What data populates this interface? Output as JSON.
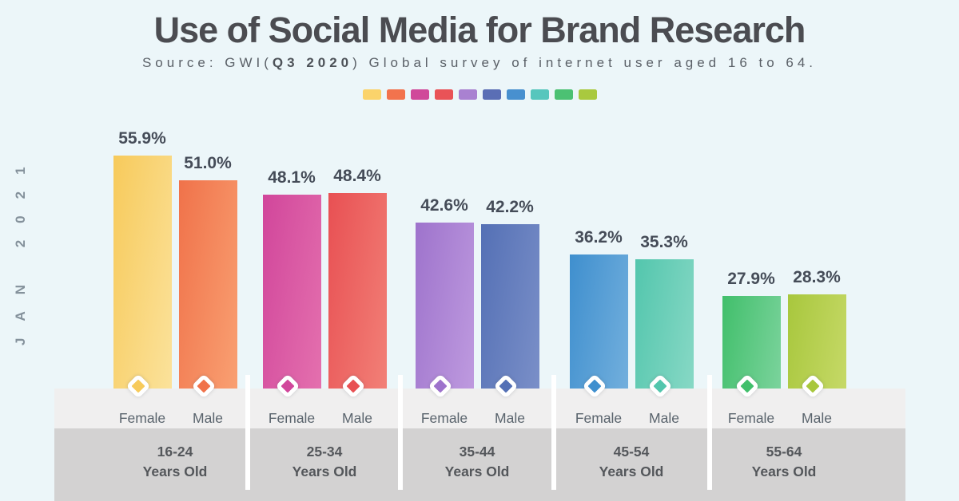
{
  "header": {
    "title": "Use of Social Media for Brand Research",
    "subtitle_prefix": "Source: GWI(",
    "subtitle_bold": "Q3 2020",
    "subtitle_suffix": ") Global survey of internet user aged 16 to 64."
  },
  "side_label": "JAN 2021",
  "legend_colors": [
    "#FBD36B",
    "#F2734D",
    "#D0499A",
    "#E95357",
    "#A981D1",
    "#5A6EB5",
    "#4890CF",
    "#57C6BD",
    "#4CC173",
    "#A9C93F"
  ],
  "colors": {
    "background": "#ECF6F9",
    "band_light": "#F0EFEF",
    "band_dark": "#D3D2D2",
    "divider": "#FFFFFF",
    "title_text": "#4B4C51",
    "subtitle_text": "#5A6067",
    "value_text": "#454C58",
    "series_text": "#5A646D",
    "category_text": "#54575B",
    "side_label_text": "#84919B"
  },
  "chart_data": {
    "type": "bar",
    "title": "Use of Social Media for Brand Research",
    "subtitle": "Source: GWI(Q3 2020) Global survey of internet user aged 16 to 64.",
    "unit": "%",
    "value_suffix": "%",
    "categories": [
      "16-24",
      "25-34",
      "35-44",
      "45-54",
      "55-64"
    ],
    "category_suffix": "Years Old",
    "series": [
      {
        "name": "Female",
        "values": [
          55.9,
          48.1,
          42.6,
          36.2,
          27.9
        ],
        "colors": [
          [
            "#F7CA5B",
            "#FBE29B"
          ],
          [
            "#D1469B",
            "#E470AE"
          ],
          [
            "#9E73CC",
            "#BE9ADF"
          ],
          [
            "#3F8FCE",
            "#72AFDD"
          ],
          [
            "#41BF6B",
            "#7BD39C"
          ]
        ]
      },
      {
        "name": "Male",
        "values": [
          51.0,
          48.4,
          42.2,
          35.3,
          28.3
        ],
        "colors": [
          [
            "#F0724A",
            "#F9A072"
          ],
          [
            "#E85053",
            "#F28077"
          ],
          [
            "#5470B5",
            "#7A8FC8"
          ],
          [
            "#53C6AD",
            "#87D8C5"
          ],
          [
            "#A8C73D",
            "#C6D967"
          ]
        ]
      }
    ],
    "ylim": [
      0,
      60
    ],
    "grid": false,
    "legend_position": "top",
    "annotations": "JAN 2021"
  }
}
